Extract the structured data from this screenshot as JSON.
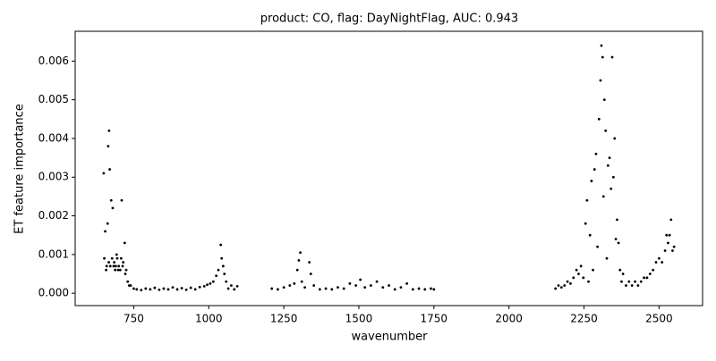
{
  "chart_data": {
    "type": "scatter",
    "title": "product: CO, flag: DayNightFlag, AUC: 0.943",
    "x_label": "wavenumber",
    "y_label": "ET feature importance",
    "color": "#000000",
    "xlim": [
      555,
      2645
    ],
    "ylim": [
      -0.00032,
      0.00677
    ],
    "xticks": [
      750,
      1000,
      1250,
      1500,
      1750,
      2000,
      2250,
      2500
    ],
    "yticks": [
      {
        "value": 0,
        "label": "0.000"
      },
      {
        "value": 0.001,
        "label": "0.001"
      },
      {
        "value": 0.002,
        "label": "0.002"
      },
      {
        "value": 0.003,
        "label": "0.003"
      },
      {
        "value": 0.004,
        "label": "0.004"
      },
      {
        "value": 0.005,
        "label": "0.005"
      },
      {
        "value": 0.006,
        "label": "0.006"
      }
    ],
    "x": [
      650,
      652,
      655,
      658,
      660,
      663,
      665,
      667,
      668,
      670,
      672,
      675,
      678,
      680,
      683,
      685,
      688,
      690,
      693,
      695,
      698,
      700,
      705,
      708,
      710,
      713,
      715,
      720,
      722,
      725,
      730,
      735,
      740,
      750,
      760,
      775,
      790,
      805,
      820,
      835,
      850,
      865,
      880,
      895,
      910,
      925,
      940,
      955,
      970,
      985,
      995,
      1005,
      1015,
      1025,
      1032,
      1040,
      1043,
      1048,
      1052,
      1058,
      1065,
      1075,
      1085,
      1095,
      1210,
      1230,
      1250,
      1270,
      1285,
      1295,
      1300,
      1305,
      1310,
      1320,
      1335,
      1340,
      1350,
      1370,
      1390,
      1410,
      1430,
      1450,
      1470,
      1490,
      1505,
      1520,
      1540,
      1560,
      1580,
      1600,
      1620,
      1640,
      1660,
      1680,
      1700,
      1720,
      1740,
      1750,
      2155,
      2165,
      2175,
      2185,
      2195,
      2205,
      2215,
      2225,
      2232,
      2240,
      2248,
      2255,
      2260,
      2265,
      2270,
      2275,
      2280,
      2285,
      2290,
      2295,
      2300,
      2305,
      2308,
      2312,
      2315,
      2318,
      2322,
      2326,
      2330,
      2335,
      2340,
      2344,
      2348,
      2352,
      2356,
      2360,
      2365,
      2370,
      2375,
      2380,
      2390,
      2400,
      2410,
      2420,
      2430,
      2440,
      2450,
      2460,
      2470,
      2480,
      2490,
      2500,
      2510,
      2520,
      2525,
      2530,
      2535,
      2540,
      2545,
      2550
    ],
    "values": [
      0.0031,
      0.0009,
      0.0016,
      0.0006,
      0.0007,
      0.0018,
      0.0038,
      0.0008,
      0.0042,
      0.0032,
      0.0007,
      0.0024,
      0.0009,
      0.0022,
      0.0007,
      0.0008,
      0.0006,
      0.0007,
      0.001,
      0.0009,
      0.0006,
      0.0007,
      0.0006,
      0.0009,
      0.0024,
      0.0007,
      0.0008,
      0.0013,
      0.0005,
      0.0006,
      0.0003,
      0.0002,
      0.0002,
      0.00012,
      0.0001,
      8e-05,
      0.00012,
      0.0001,
      0.00014,
      9e-05,
      0.00012,
      0.0001,
      0.00015,
      0.0001,
      0.00013,
      9e-05,
      0.00014,
      0.0001,
      0.00016,
      0.00018,
      0.00022,
      0.00025,
      0.0003,
      0.00045,
      0.0006,
      0.00125,
      0.0009,
      0.0007,
      0.0005,
      0.0003,
      0.00012,
      0.0002,
      0.0001,
      0.00018,
      0.00012,
      0.0001,
      0.00015,
      0.0002,
      0.00025,
      0.0006,
      0.00085,
      0.00105,
      0.0003,
      0.00015,
      0.0008,
      0.0005,
      0.0002,
      0.0001,
      0.00012,
      0.0001,
      0.00015,
      0.00012,
      0.00025,
      0.0002,
      0.00035,
      0.00015,
      0.0002,
      0.0003,
      0.00015,
      0.0002,
      0.0001,
      0.00015,
      0.00025,
      0.0001,
      0.00012,
      0.0001,
      0.00012,
      0.0001,
      0.00012,
      0.0002,
      0.00015,
      0.0002,
      0.0003,
      0.00025,
      0.0004,
      0.0006,
      0.0005,
      0.0007,
      0.0004,
      0.0018,
      0.0024,
      0.0003,
      0.0015,
      0.0029,
      0.0006,
      0.0032,
      0.0036,
      0.0012,
      0.0045,
      0.0055,
      0.0064,
      0.0061,
      0.0025,
      0.005,
      0.0042,
      0.0009,
      0.0033,
      0.0035,
      0.0027,
      0.0061,
      0.003,
      0.004,
      0.0014,
      0.0019,
      0.0013,
      0.0006,
      0.0003,
      0.0005,
      0.0002,
      0.0003,
      0.0002,
      0.0003,
      0.0002,
      0.0003,
      0.0004,
      0.0004,
      0.0005,
      0.0006,
      0.0008,
      0.0009,
      0.0008,
      0.0011,
      0.0015,
      0.0013,
      0.0015,
      0.0019,
      0.0011,
      0.0012
    ]
  }
}
